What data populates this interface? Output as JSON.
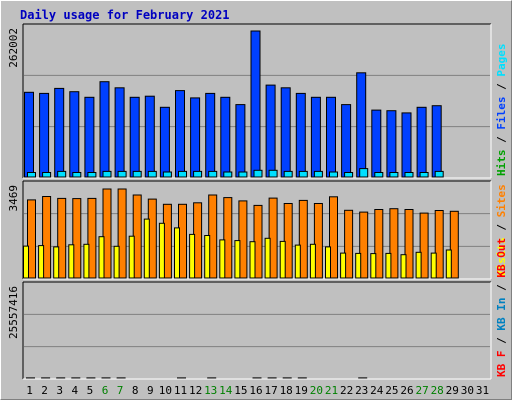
{
  "title": "Daily usage for February 2021",
  "colors": {
    "background": "#c0c0c0",
    "panel": "#c0c0c0",
    "grid": "#808080",
    "hits": "#00a000",
    "files": "#0040ff",
    "pages": "#00e0ff",
    "visits": "#ffff00",
    "sites": "#ff8000",
    "kbin": "#0080c0",
    "kbout": "#ff0000",
    "title": "#0000c0",
    "weekday_label": "#000000",
    "weekend_label": "#008000"
  },
  "chart_data": [
    {
      "type": "bar",
      "panel": "top",
      "ymax_label": "262002",
      "ymax": 262002,
      "legend": [
        {
          "text": "Hits",
          "color_key": "hits"
        },
        {
          "text": "/",
          "color_key": "slash"
        },
        {
          "text": "Files",
          "color_key": "files"
        },
        {
          "text": "/",
          "color_key": "slash"
        },
        {
          "text": "Pages",
          "color_key": "pages"
        }
      ],
      "categories": [
        "1",
        "2",
        "3",
        "4",
        "5",
        "6",
        "7",
        "8",
        "9",
        "10",
        "11",
        "12",
        "13",
        "14",
        "15",
        "16",
        "17",
        "18",
        "19",
        "20",
        "21",
        "22",
        "23",
        "24",
        "25",
        "26",
        "27",
        "28",
        "29",
        "30",
        "31"
      ],
      "series": [
        {
          "name": "Files",
          "color_key": "files",
          "values": [
            152000,
            150000,
            159000,
            153000,
            143000,
            171000,
            160000,
            143000,
            145000,
            125000,
            155000,
            142000,
            150000,
            143000,
            130000,
            262002,
            165000,
            160000,
            150000,
            143000,
            143000,
            130000,
            187000,
            120000,
            119000,
            115000,
            125000,
            128000,
            0,
            0,
            0
          ]
        },
        {
          "name": "Pages",
          "color_key": "pages",
          "values": [
            8000,
            8000,
            10000,
            8000,
            8000,
            10000,
            10000,
            10000,
            10000,
            9000,
            10000,
            10000,
            10000,
            9000,
            9000,
            12000,
            12000,
            10000,
            10000,
            10000,
            9000,
            8000,
            15000,
            8000,
            8000,
            8000,
            8000,
            10000,
            0,
            0,
            0
          ]
        }
      ]
    },
    {
      "type": "bar",
      "panel": "middle",
      "ymax_label": "3469",
      "ymax": 3469,
      "legend": [
        {
          "text": "Visits",
          "color_key": "visits"
        },
        {
          "text": "/",
          "color_key": "slash"
        },
        {
          "text": "Sites",
          "color_key": "sites"
        }
      ],
      "categories": [
        "1",
        "2",
        "3",
        "4",
        "5",
        "6",
        "7",
        "8",
        "9",
        "10",
        "11",
        "12",
        "13",
        "14",
        "15",
        "16",
        "17",
        "18",
        "19",
        "20",
        "21",
        "22",
        "23",
        "24",
        "25",
        "26",
        "27",
        "28",
        "29",
        "30",
        "31"
      ],
      "series": [
        {
          "name": "Sites",
          "color_key": "sites",
          "values": [
            3010,
            3140,
            3070,
            3060,
            3070,
            3430,
            3430,
            3200,
            3040,
            2840,
            2840,
            2900,
            3200,
            3100,
            2970,
            2800,
            3080,
            2870,
            2990,
            2870,
            3130,
            2610,
            2540,
            2640,
            2670,
            2640,
            2500,
            2600,
            2570,
            0,
            0
          ]
        },
        {
          "name": "Visits",
          "color_key": "visits",
          "values": [
            1230,
            1250,
            1200,
            1280,
            1300,
            1590,
            1220,
            1610,
            2270,
            2110,
            1930,
            1680,
            1640,
            1470,
            1440,
            1400,
            1530,
            1410,
            1270,
            1300,
            1200,
            960,
            950,
            940,
            950,
            900,
            990,
            960,
            1080,
            0,
            0
          ]
        }
      ]
    },
    {
      "type": "bar",
      "panel": "bottom",
      "ymax_label": "25557416",
      "ymax": 25557416,
      "legend": [
        {
          "text": "KB F",
          "color_key": "kbout"
        },
        {
          "text": "/",
          "color_key": "slash"
        },
        {
          "text": "KB In",
          "color_key": "kbin"
        },
        {
          "text": "/",
          "color_key": "slash"
        },
        {
          "text": "KB Out",
          "color_key": "kbout"
        }
      ],
      "categories": [
        "1",
        "2",
        "3",
        "4",
        "5",
        "6",
        "7",
        "8",
        "9",
        "10",
        "11",
        "12",
        "13",
        "14",
        "15",
        "16",
        "17",
        "18",
        "19",
        "20",
        "21",
        "22",
        "23",
        "24",
        "25",
        "26",
        "27",
        "28",
        "29",
        "30",
        "31"
      ],
      "series": [
        {
          "name": "KB Out",
          "color_key": "kbout",
          "values": [
            15200,
            16000,
            15300,
            15200,
            14800,
            18000,
            16800,
            13500,
            13000,
            12200,
            15500,
            14000,
            16000,
            14000,
            13000,
            25557,
            18000,
            15300,
            14800,
            13000,
            14000,
            12300,
            21000,
            12000,
            12200,
            11800,
            12200,
            12000,
            0,
            0,
            0
          ]
        }
      ]
    }
  ],
  "x_labels": [
    {
      "text": "1",
      "weekend": false
    },
    {
      "text": "2",
      "weekend": false
    },
    {
      "text": "3",
      "weekend": false
    },
    {
      "text": "4",
      "weekend": false
    },
    {
      "text": "5",
      "weekend": false
    },
    {
      "text": "6",
      "weekend": true
    },
    {
      "text": "7",
      "weekend": true
    },
    {
      "text": "8",
      "weekend": false
    },
    {
      "text": "9",
      "weekend": false
    },
    {
      "text": "10",
      "weekend": false
    },
    {
      "text": "11",
      "weekend": false
    },
    {
      "text": "12",
      "weekend": false
    },
    {
      "text": "13",
      "weekend": true
    },
    {
      "text": "14",
      "weekend": true
    },
    {
      "text": "15",
      "weekend": false
    },
    {
      "text": "16",
      "weekend": false
    },
    {
      "text": "17",
      "weekend": false
    },
    {
      "text": "18",
      "weekend": false
    },
    {
      "text": "19",
      "weekend": false
    },
    {
      "text": "20",
      "weekend": true
    },
    {
      "text": "21",
      "weekend": true
    },
    {
      "text": "22",
      "weekend": false
    },
    {
      "text": "23",
      "weekend": false
    },
    {
      "text": "24",
      "weekend": false
    },
    {
      "text": "25",
      "weekend": false
    },
    {
      "text": "26",
      "weekend": false
    },
    {
      "text": "27",
      "weekend": true
    },
    {
      "text": "28",
      "weekend": true
    },
    {
      "text": "29",
      "weekend": false
    },
    {
      "text": "30",
      "weekend": false
    },
    {
      "text": "31",
      "weekend": false
    }
  ]
}
